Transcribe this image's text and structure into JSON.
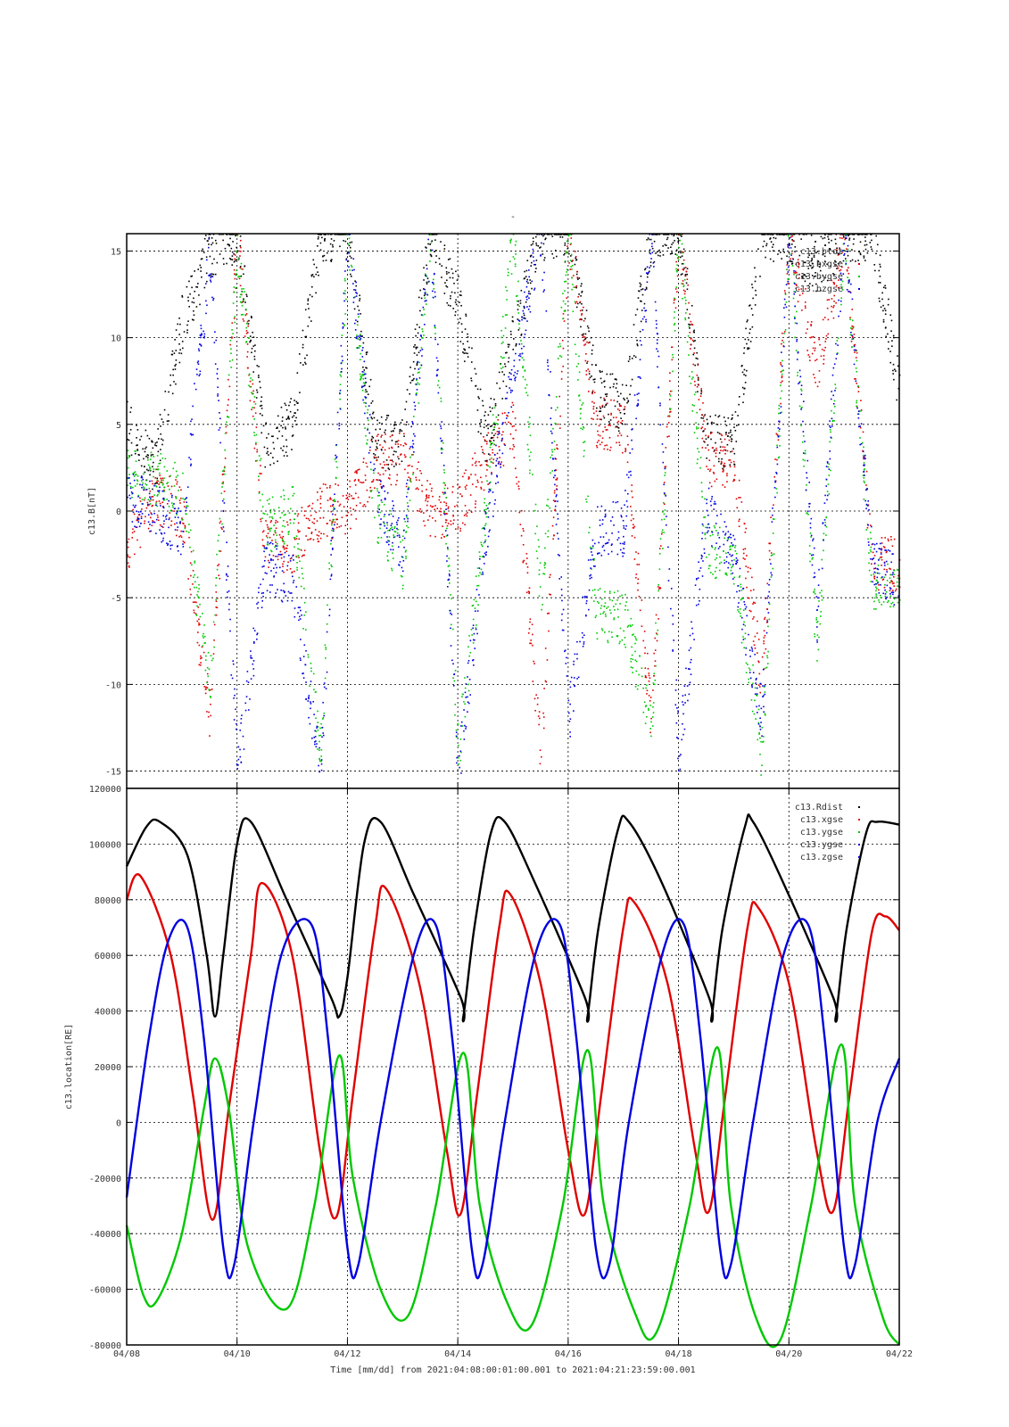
{
  "figure": {
    "title": "-",
    "x_axis_caption": "Time [mm/dd]  from 2021:04:08:00:01:00.001  to  2021:04:21:23:59:00.001"
  },
  "colors": {
    "black": "#000000",
    "red": "#e00000",
    "green": "#00c800",
    "blue": "#0000e0"
  },
  "chart_data": [
    {
      "type": "scatter",
      "title": "",
      "ylabel": "c13.B[nT]",
      "xlabel": "Time [mm/dd]",
      "xlim": [
        "04/08",
        "04/22"
      ],
      "ylim": [
        -16,
        16
      ],
      "yticks": [
        -15,
        -10,
        -5,
        0,
        5,
        10,
        15
      ],
      "xticks": [
        "04/08",
        "04/10",
        "04/12",
        "04/14",
        "04/16",
        "04/18",
        "04/20",
        "04/22"
      ],
      "grid": true,
      "legend_position": "top-right",
      "note": "dense scatter; series values are approximate daily-sampled medians read from the plot",
      "x_days": [
        0,
        0.5,
        1,
        1.5,
        2,
        2.5,
        3,
        3.5,
        4,
        4.5,
        5,
        5.5,
        6,
        6.5,
        7,
        7.5,
        8,
        8.5,
        9,
        9.5,
        10,
        10.5,
        11,
        11.5,
        12,
        12.5,
        13,
        13.5,
        14
      ],
      "series": [
        {
          "name": "c13.btot",
          "color": "#000000",
          "values": [
            5,
            2.5,
            11,
            15,
            16,
            4,
            5,
            16,
            16,
            4,
            4,
            16,
            12,
            4,
            10,
            16,
            16,
            7,
            6,
            16,
            16,
            4,
            4,
            16,
            16,
            14,
            16,
            16,
            7
          ]
        },
        {
          "name": "c13.bxgse",
          "color": "#e00000",
          "values": [
            -2,
            1,
            0,
            -12,
            16,
            -2,
            -2,
            0,
            0,
            3,
            3,
            0,
            0,
            3,
            5,
            -14,
            16,
            5,
            5,
            -12,
            16,
            3,
            3,
            -10,
            16,
            8,
            16,
            -3,
            -3
          ]
        },
        {
          "name": "c13.bygse",
          "color": "#00c800",
          "values": [
            2,
            2,
            1,
            -10,
            15,
            -1,
            0,
            -14,
            16,
            0,
            -3,
            16,
            -14,
            0,
            16,
            -5,
            16,
            -6,
            -6,
            -12,
            16,
            -2,
            -3,
            -14,
            16,
            -8,
            16,
            -4,
            -5
          ]
        },
        {
          "name": "c13.bzgse",
          "color": "#0000e0",
          "values": [
            1,
            0,
            -1,
            15,
            -15,
            -3,
            -4,
            -15,
            16,
            1,
            -2,
            16,
            -15,
            -1,
            8,
            16,
            -12,
            -1,
            -1,
            16,
            -14,
            0,
            -3,
            -12,
            16,
            -6,
            16,
            -3,
            -4
          ]
        }
      ]
    },
    {
      "type": "line",
      "title": "",
      "ylabel": "c13.location[RE]",
      "xlabel": "Time [mm/dd]",
      "xlim": [
        "04/08",
        "04/22"
      ],
      "ylim": [
        -80000,
        120000
      ],
      "yticks": [
        -80000,
        -60000,
        -40000,
        -20000,
        0,
        20000,
        40000,
        60000,
        80000,
        100000,
        120000
      ],
      "xticks": [
        "04/08",
        "04/10",
        "04/12",
        "04/14",
        "04/16",
        "04/18",
        "04/20",
        "04/22"
      ],
      "grid": true,
      "legend_position": "top-right",
      "period_days": 2.25,
      "series": [
        {
          "name": "c13.Rdist",
          "color": "#000000",
          "points": [
            [
              0,
              92000
            ],
            [
              0.35,
              106000
            ],
            [
              0.6,
              108000
            ],
            [
              1.1,
              96000
            ],
            [
              1.45,
              60000
            ],
            [
              1.6,
              38000
            ],
            [
              1.75,
              60000
            ],
            [
              2.0,
              100000
            ],
            [
              2.25,
              108000
            ],
            [
              2.9,
              80000
            ],
            [
              3.7,
              45000
            ],
            [
              3.85,
              38000
            ],
            [
              4.0,
              52000
            ],
            [
              4.3,
              100000
            ],
            [
              4.6,
              108000
            ],
            [
              5.2,
              82000
            ],
            [
              6.05,
              45000
            ],
            [
              6.1,
              38000
            ],
            [
              6.3,
              70000
            ],
            [
              6.6,
              104000
            ],
            [
              6.85,
              108000
            ],
            [
              7.4,
              86000
            ],
            [
              8.3,
              45000
            ],
            [
              8.35,
              38000
            ],
            [
              8.55,
              70000
            ],
            [
              8.9,
              105000
            ],
            [
              9.1,
              108000
            ],
            [
              9.7,
              86000
            ],
            [
              10.55,
              45000
            ],
            [
              10.6,
              38000
            ],
            [
              10.8,
              70000
            ],
            [
              11.2,
              106000
            ],
            [
              11.35,
              108000
            ],
            [
              11.9,
              86000
            ],
            [
              12.8,
              45000
            ],
            [
              12.85,
              38000
            ],
            [
              13.05,
              70000
            ],
            [
              13.4,
              104000
            ],
            [
              13.6,
              108000
            ],
            [
              14.0,
              107000
            ]
          ]
        },
        {
          "name": "c13.xgse",
          "color": "#e00000",
          "points": [
            [
              0,
              80000
            ],
            [
              0.25,
              88500
            ],
            [
              0.8,
              60000
            ],
            [
              1.2,
              10000
            ],
            [
              1.55,
              -35000
            ],
            [
              1.85,
              5000
            ],
            [
              2.25,
              60000
            ],
            [
              2.45,
              86000
            ],
            [
              3.0,
              60000
            ],
            [
              3.5,
              -10000
            ],
            [
              3.8,
              -34000
            ],
            [
              4.1,
              10000
            ],
            [
              4.5,
              70000
            ],
            [
              4.7,
              84000
            ],
            [
              5.3,
              50000
            ],
            [
              5.8,
              -10000
            ],
            [
              6.05,
              -33000
            ],
            [
              6.35,
              10000
            ],
            [
              6.75,
              70000
            ],
            [
              6.95,
              82000
            ],
            [
              7.5,
              50000
            ],
            [
              8.0,
              -10000
            ],
            [
              8.3,
              -33000
            ],
            [
              8.6,
              10000
            ],
            [
              9.0,
              70000
            ],
            [
              9.2,
              79000
            ],
            [
              9.8,
              50000
            ],
            [
              10.3,
              -10000
            ],
            [
              10.55,
              -32000
            ],
            [
              10.85,
              10000
            ],
            [
              11.25,
              70000
            ],
            [
              11.45,
              77000
            ],
            [
              12.0,
              50000
            ],
            [
              12.5,
              -10000
            ],
            [
              12.8,
              -32000
            ],
            [
              13.1,
              10000
            ],
            [
              13.5,
              68000
            ],
            [
              13.75,
              74000
            ],
            [
              14.0,
              69000
            ]
          ]
        },
        {
          "name": "c13.ygse",
          "color": "#00c800",
          "points": [
            [
              0,
              -37000
            ],
            [
              0.3,
              -62000
            ],
            [
              0.55,
              -64000
            ],
            [
              1.0,
              -40000
            ],
            [
              1.4,
              5000
            ],
            [
              1.6,
              23000
            ],
            [
              1.85,
              5000
            ],
            [
              2.2,
              -45000
            ],
            [
              2.9,
              -67000
            ],
            [
              3.4,
              -30000
            ],
            [
              3.85,
              24000
            ],
            [
              4.1,
              -20000
            ],
            [
              4.6,
              -60000
            ],
            [
              5.1,
              -69500
            ],
            [
              5.6,
              -30000
            ],
            [
              6.1,
              25000
            ],
            [
              6.4,
              -30000
            ],
            [
              6.9,
              -65000
            ],
            [
              7.35,
              -72500
            ],
            [
              7.9,
              -30000
            ],
            [
              8.35,
              26000
            ],
            [
              8.65,
              -30000
            ],
            [
              9.2,
              -68000
            ],
            [
              9.6,
              -75500
            ],
            [
              10.2,
              -30000
            ],
            [
              10.7,
              27000
            ],
            [
              10.95,
              -30000
            ],
            [
              11.4,
              -70000
            ],
            [
              11.85,
              -78000
            ],
            [
              12.4,
              -30000
            ],
            [
              12.95,
              28000
            ],
            [
              13.2,
              -30000
            ],
            [
              13.7,
              -70000
            ],
            [
              14.0,
              -80000
            ]
          ]
        },
        {
          "name": "c13.ygse",
          "color": "#0000e0",
          "points": [
            [
              0,
              -27000
            ],
            [
              0.4,
              30000
            ],
            [
              0.75,
              65000
            ],
            [
              1.1,
              70000
            ],
            [
              1.4,
              30000
            ],
            [
              1.75,
              -45000
            ],
            [
              1.95,
              -51000
            ],
            [
              2.3,
              0
            ],
            [
              2.8,
              60000
            ],
            [
              3.35,
              71000
            ],
            [
              3.65,
              30000
            ],
            [
              4.0,
              -45000
            ],
            [
              4.2,
              -51000
            ],
            [
              4.6,
              0
            ],
            [
              5.2,
              60000
            ],
            [
              5.6,
              71000
            ],
            [
              5.9,
              30000
            ],
            [
              6.25,
              -45000
            ],
            [
              6.45,
              -51000
            ],
            [
              6.85,
              0
            ],
            [
              7.4,
              60000
            ],
            [
              7.85,
              71000
            ],
            [
              8.15,
              30000
            ],
            [
              8.5,
              -45000
            ],
            [
              8.75,
              -51000
            ],
            [
              9.1,
              0
            ],
            [
              9.7,
              60000
            ],
            [
              10.1,
              71000
            ],
            [
              10.4,
              30000
            ],
            [
              10.75,
              -45000
            ],
            [
              10.95,
              -51000
            ],
            [
              11.35,
              0
            ],
            [
              11.9,
              60000
            ],
            [
              12.35,
              71000
            ],
            [
              12.65,
              30000
            ],
            [
              13.0,
              -45000
            ],
            [
              13.2,
              -51000
            ],
            [
              13.6,
              0
            ],
            [
              14.0,
              23000
            ]
          ]
        },
        {
          "name": "c13.zgse",
          "color": "#0000e0",
          "points": []
        }
      ]
    }
  ]
}
